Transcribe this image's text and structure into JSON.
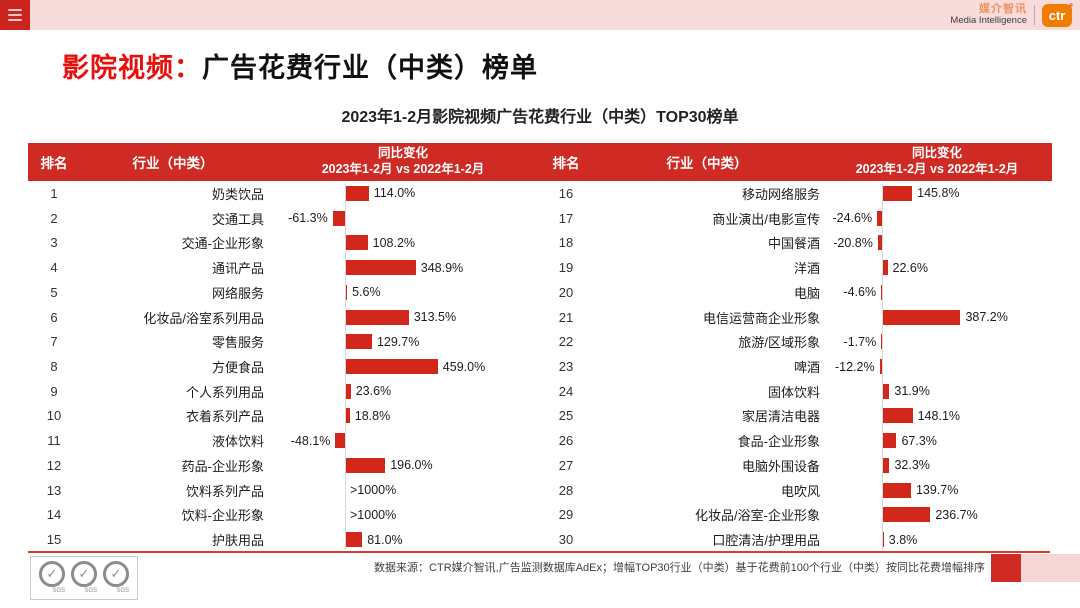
{
  "topbar": {
    "menu_icon": "hamburger-icon"
  },
  "brand": {
    "name_cn": "媒介智讯",
    "name_en": "Media Intelligence",
    "logo_text": "ctr",
    "registered_mark": "®"
  },
  "page_title": {
    "highlight": "影院视频：",
    "rest": "广告花费行业（中类）榜单"
  },
  "subtitle": "2023年1-2月影院视频广告花费行业（中类）TOP30榜单",
  "table": {
    "header": {
      "rank": "排名",
      "industry": "行业（中类）",
      "change_line1": "同比变化",
      "change_line2": "2023年1-2月 vs 2022年1-2月"
    }
  },
  "chart_data": {
    "type": "bar",
    "orientation": "horizontal",
    "title": "2023年1-2月影院视频广告花费行业（中类）TOP30榜单",
    "value_unit": "% 同比变化 (YoY)",
    "bar_color": "#d2271b",
    "xlim": [
      -100,
      500
    ],
    "grid": false,
    "legend": "none",
    "left_rows": [
      {
        "rank": "1",
        "industry": "奶类饮品",
        "value": 114.0,
        "label": "114.0%"
      },
      {
        "rank": "2",
        "industry": "交通工具",
        "value": -61.3,
        "label": "-61.3%"
      },
      {
        "rank": "3",
        "industry": "交通-企业形象",
        "value": 108.2,
        "label": "108.2%"
      },
      {
        "rank": "4",
        "industry": "通讯产品",
        "value": 348.9,
        "label": "348.9%"
      },
      {
        "rank": "5",
        "industry": "网络服务",
        "value": 5.6,
        "label": "5.6%"
      },
      {
        "rank": "6",
        "industry": "化妆品/浴室系列用品",
        "value": 313.5,
        "label": "313.5%"
      },
      {
        "rank": "7",
        "industry": "零售服务",
        "value": 129.7,
        "label": "129.7%"
      },
      {
        "rank": "8",
        "industry": "方便食品",
        "value": 459.0,
        "label": "459.0%"
      },
      {
        "rank": "9",
        "industry": "个人系列用品",
        "value": 23.6,
        "label": "23.6%"
      },
      {
        "rank": "10",
        "industry": "衣着系列产品",
        "value": 18.8,
        "label": "18.8%"
      },
      {
        "rank": "11",
        "industry": "液体饮料",
        "value": -48.1,
        "label": "-48.1%"
      },
      {
        "rank": "12",
        "industry": "药品-企业形象",
        "value": 196.0,
        "label": "196.0%"
      },
      {
        "rank": "13",
        "industry": "饮料系列产品",
        "value": null,
        "label": ">1000%"
      },
      {
        "rank": "14",
        "industry": "饮料-企业形象",
        "value": null,
        "label": ">1000%"
      },
      {
        "rank": "15",
        "industry": "护肤用品",
        "value": 81.0,
        "label": "81.0%"
      }
    ],
    "right_rows": [
      {
        "rank": "16",
        "industry": "移动网络服务",
        "value": 145.8,
        "label": "145.8%"
      },
      {
        "rank": "17",
        "industry": "商业演出/电影宣传",
        "value": -24.6,
        "label": "-24.6%"
      },
      {
        "rank": "18",
        "industry": "中国餐酒",
        "value": -20.8,
        "label": "-20.8%"
      },
      {
        "rank": "19",
        "industry": "洋酒",
        "value": 22.6,
        "label": "22.6%"
      },
      {
        "rank": "20",
        "industry": "电脑",
        "value": -4.6,
        "label": "-4.6%"
      },
      {
        "rank": "21",
        "industry": "电信运营商企业形象",
        "value": 387.2,
        "label": "387.2%"
      },
      {
        "rank": "22",
        "industry": "旅游/区域形象",
        "value": -1.7,
        "label": "-1.7%"
      },
      {
        "rank": "23",
        "industry": "啤酒",
        "value": -12.2,
        "label": "-12.2%"
      },
      {
        "rank": "24",
        "industry": "固体饮料",
        "value": 31.9,
        "label": "31.9%"
      },
      {
        "rank": "25",
        "industry": "家居清洁电器",
        "value": 148.1,
        "label": "148.1%"
      },
      {
        "rank": "26",
        "industry": "食品-企业形象",
        "value": 67.3,
        "label": "67.3%"
      },
      {
        "rank": "27",
        "industry": "电脑外围设备",
        "value": 32.3,
        "label": "32.3%"
      },
      {
        "rank": "28",
        "industry": "电吹风",
        "value": 139.7,
        "label": "139.7%"
      },
      {
        "rank": "29",
        "industry": "化妆品/浴室-企业形象",
        "value": 236.7,
        "label": "236.7%"
      },
      {
        "rank": "30",
        "industry": "口腔清洁/护理用品",
        "value": 3.8,
        "label": "3.8%"
      }
    ]
  },
  "footer": {
    "source": "数据来源：CTR媒介智讯,广告监测数据库AdEx；增幅TOP30行业（中类）基于花费前100个行业（中类）按同比花费增幅排序",
    "sgs_label": "SGS"
  },
  "colors": {
    "accent_red": "#cf2a23",
    "bar_red": "#d2271b",
    "title_red": "#e8100c",
    "topbar_pink": "#f8dcdb",
    "logo_orange": "#f07c00"
  }
}
